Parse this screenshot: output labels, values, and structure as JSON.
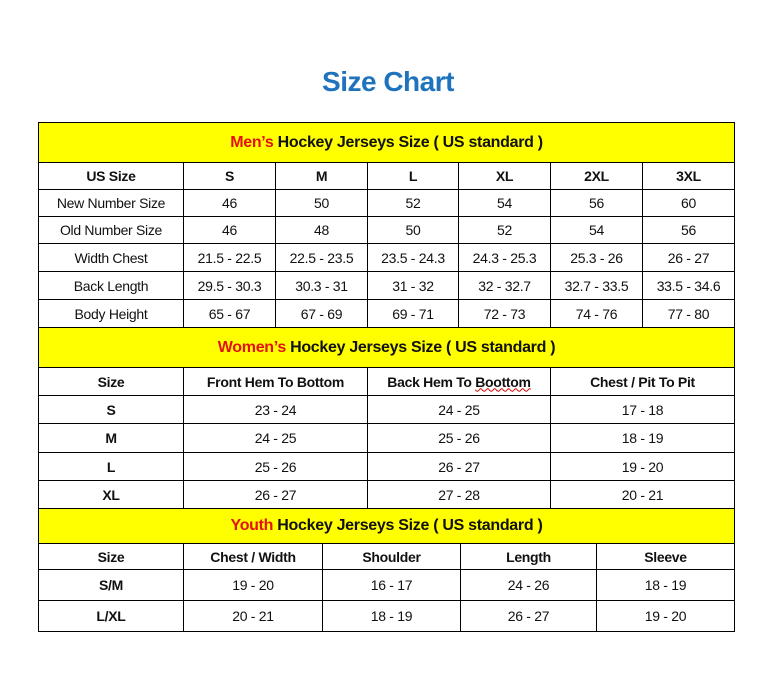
{
  "title": "Size Chart",
  "colors": {
    "title": "#1f73bd",
    "band": "#ffff00",
    "highlight": "#e31212"
  },
  "men": {
    "band_highlight": "Men’s",
    "band_rest": " Hockey Jerseys Size ( US standard )",
    "header": [
      "US Size",
      "S",
      "M",
      "L",
      "XL",
      "2XL",
      "3XL"
    ],
    "rows": [
      [
        "New Number Size",
        "46",
        "50",
        "52",
        "54",
        "56",
        "60"
      ],
      [
        "Old Number Size",
        "46",
        "48",
        "50",
        "52",
        "54",
        "56"
      ],
      [
        "Width Chest",
        "21.5 - 22.5",
        "22.5 - 23.5",
        "23.5 - 24.3",
        "24.3 - 25.3",
        "25.3 - 26",
        "26 - 27"
      ],
      [
        "Back Length",
        "29.5 - 30.3",
        "30.3 - 31",
        "31 - 32",
        "32 - 32.7",
        "32.7 - 33.5",
        "33.5 - 34.6"
      ],
      [
        "Body Height",
        "65 - 67",
        "67 - 69",
        "69 - 71",
        "72 - 73",
        "74 - 76",
        "77 - 80"
      ]
    ]
  },
  "women": {
    "band_highlight": "Women’s",
    "band_rest": " Hockey Jerseys Size ( US standard )",
    "header": [
      "Size",
      "Front Hem To Bottom",
      "Back Hem To Boottom",
      "Chest / Pit To Pit"
    ],
    "rows": [
      [
        "S",
        "23 - 24",
        "24 - 25",
        "17 - 18"
      ],
      [
        "M",
        "24 - 25",
        "25 - 26",
        "18 - 19"
      ],
      [
        "L",
        "25 - 26",
        "26 - 27",
        "19 - 20"
      ],
      [
        "XL",
        "26 - 27",
        "27 - 28",
        "20 - 21"
      ]
    ]
  },
  "youth": {
    "band_highlight": "Youth",
    "band_rest": " Hockey Jerseys Size ( US standard )",
    "header": [
      "Size",
      "Chest / Width",
      "Shoulder",
      "Length",
      "Sleeve"
    ],
    "rows": [
      [
        "S/M",
        "19 - 20",
        "16 - 17",
        "24 - 26",
        "18 - 19"
      ],
      [
        "L/XL",
        "20 - 21",
        "18 - 19",
        "26 - 27",
        "19 - 20"
      ]
    ]
  }
}
